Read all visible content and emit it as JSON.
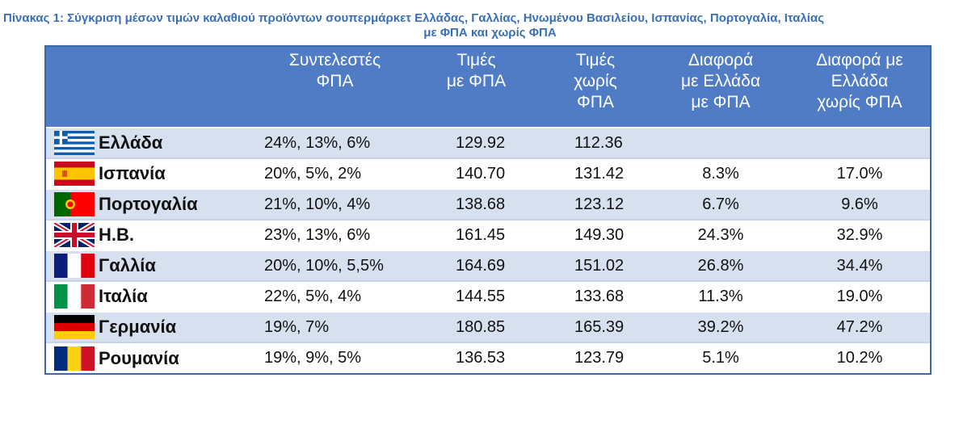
{
  "caption": {
    "line1": "Πίνακας 1: Σύγκριση μέσων τιμών καλαθιού προϊόντων σουπερμάρκετ Ελλάδας, Γαλλίας, Ηνωμένου Βασιλείου, Ισπανίας, Πορτογαλία, Ιταλίας",
    "line2": "με ΦΠΑ και χωρίς ΦΠΑ"
  },
  "table": {
    "headers": {
      "vat_rates": [
        "Συντελεστές",
        "ΦΠΑ"
      ],
      "price_vat": [
        "Τιμές",
        "με ΦΠΑ"
      ],
      "price_novat": [
        "Τιμές",
        "χωρίς",
        "ΦΠΑ"
      ],
      "diff_vat": [
        "Διαφορά",
        "με Ελλάδα",
        "με ΦΠΑ"
      ],
      "diff_novat": [
        "Διαφορά με",
        "Ελλάδα",
        "χωρίς ΦΠΑ"
      ]
    },
    "rows": [
      {
        "country": "Ελλάδα",
        "flag": "greece-flag",
        "vat_rates": "24%, 13%, 6%",
        "price_vat": "129.92",
        "price_novat": "112.36",
        "diff_vat": "",
        "diff_novat": ""
      },
      {
        "country": "Ισπανία",
        "flag": "spain-flag",
        "vat_rates": "20%, 5%, 2%",
        "price_vat": "140.70",
        "price_novat": "131.42",
        "diff_vat": "8.3%",
        "diff_novat": "17.0%"
      },
      {
        "country": "Πορτογαλία",
        "flag": "portugal-flag",
        "vat_rates": "21%, 10%, 4%",
        "price_vat": "138.68",
        "price_novat": "123.12",
        "diff_vat": "6.7%",
        "diff_novat": "9.6%"
      },
      {
        "country": "Η.Β.",
        "flag": "uk-flag",
        "vat_rates": "23%, 13%, 6%",
        "price_vat": "161.45",
        "price_novat": "149.30",
        "diff_vat": "24.3%",
        "diff_novat": "32.9%"
      },
      {
        "country": "Γαλλία",
        "flag": "france-flag",
        "vat_rates": "20%, 10%, 5,5%",
        "price_vat": "164.69",
        "price_novat": "151.02",
        "diff_vat": "26.8%",
        "diff_novat": "34.4%"
      },
      {
        "country": "Ιταλία",
        "flag": "italy-flag",
        "vat_rates": "22%, 5%, 4%",
        "price_vat": "144.55",
        "price_novat": "133.68",
        "diff_vat": "11.3%",
        "diff_novat": "19.0%"
      },
      {
        "country": "Γερμανία",
        "flag": "germany-flag",
        "vat_rates": "19%, 7%",
        "price_vat": "180.85",
        "price_novat": "165.39",
        "diff_vat": "39.2%",
        "diff_novat": "47.2%"
      },
      {
        "country": "Ρουμανία",
        "flag": "romania-flag",
        "vat_rates": "19%, 9%, 5%",
        "price_vat": "136.53",
        "price_novat": "123.79",
        "diff_vat": "5.1%",
        "diff_novat": "10.2%"
      }
    ]
  },
  "colors": {
    "caption": "#3a6fb7",
    "header_bg": "#4f7cc4",
    "row_alt_bg": "#d6e0ee",
    "border": "#3e66a8"
  }
}
